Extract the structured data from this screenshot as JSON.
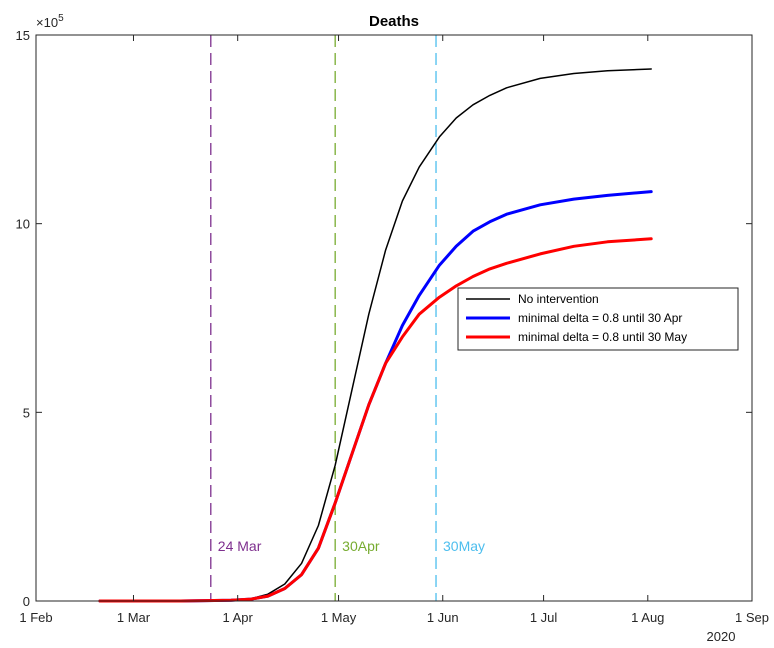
{
  "chart_data": {
    "type": "line",
    "title": "Deaths",
    "xlabel": "",
    "ylabel": "",
    "y_exponent_label": "×10",
    "y_exponent_power": "5",
    "x_year_label": "2020",
    "x_tick_labels": [
      "1 Feb",
      "1 Mar",
      "1 Apr",
      "1 May",
      "1 Jun",
      "1 Jul",
      "1 Aug",
      "1 Sep"
    ],
    "x_tick_dates": [
      "2020-02-01",
      "2020-03-01",
      "2020-04-01",
      "2020-05-01",
      "2020-06-01",
      "2020-07-01",
      "2020-08-01",
      "2020-09-01"
    ],
    "xlim": [
      "2020-02-01",
      "2020-09-01"
    ],
    "y_ticks": [
      0,
      5,
      10,
      15
    ],
    "ylim": [
      0,
      15
    ],
    "y_scale_factor": 100000,
    "grid": false,
    "legend_position": "right",
    "series": [
      {
        "name": "No intervention",
        "color": "#000000",
        "x": [
          "2020-02-20",
          "2020-03-15",
          "2020-03-30",
          "2020-04-05",
          "2020-04-10",
          "2020-04-15",
          "2020-04-20",
          "2020-04-25",
          "2020-04-30",
          "2020-05-05",
          "2020-05-10",
          "2020-05-15",
          "2020-05-20",
          "2020-05-25",
          "2020-05-31",
          "2020-06-05",
          "2020-06-10",
          "2020-06-15",
          "2020-06-20",
          "2020-06-30",
          "2020-07-10",
          "2020-07-20",
          "2020-08-02"
        ],
        "values": [
          0,
          0,
          0.02,
          0.06,
          0.18,
          0.45,
          1.0,
          2.0,
          3.6,
          5.6,
          7.6,
          9.3,
          10.6,
          11.5,
          12.3,
          12.8,
          13.15,
          13.4,
          13.6,
          13.85,
          13.98,
          14.05,
          14.1
        ]
      },
      {
        "name": "minimal delta = 0.8 until 30 Apr",
        "color": "#0000ff",
        "x": [
          "2020-02-20",
          "2020-03-15",
          "2020-03-30",
          "2020-04-05",
          "2020-04-10",
          "2020-04-15",
          "2020-04-20",
          "2020-04-25",
          "2020-04-30",
          "2020-05-05",
          "2020-05-10",
          "2020-05-15",
          "2020-05-20",
          "2020-05-25",
          "2020-05-31",
          "2020-06-05",
          "2020-06-10",
          "2020-06-15",
          "2020-06-20",
          "2020-06-30",
          "2020-07-10",
          "2020-07-20",
          "2020-08-02"
        ],
        "values": [
          0,
          0,
          0.02,
          0.05,
          0.13,
          0.33,
          0.7,
          1.4,
          2.6,
          3.9,
          5.2,
          6.3,
          7.3,
          8.1,
          8.9,
          9.4,
          9.8,
          10.05,
          10.25,
          10.5,
          10.65,
          10.75,
          10.85
        ]
      },
      {
        "name": "minimal delta = 0.8 until 30 May",
        "color": "#ff0000",
        "x": [
          "2020-02-20",
          "2020-03-15",
          "2020-03-30",
          "2020-04-05",
          "2020-04-10",
          "2020-04-15",
          "2020-04-20",
          "2020-04-25",
          "2020-04-30",
          "2020-05-05",
          "2020-05-10",
          "2020-05-15",
          "2020-05-20",
          "2020-05-25",
          "2020-05-31",
          "2020-06-05",
          "2020-06-10",
          "2020-06-15",
          "2020-06-20",
          "2020-06-30",
          "2020-07-10",
          "2020-07-20",
          "2020-08-02"
        ],
        "values": [
          0,
          0,
          0.02,
          0.05,
          0.13,
          0.33,
          0.7,
          1.4,
          2.6,
          3.9,
          5.2,
          6.3,
          7.0,
          7.6,
          8.05,
          8.35,
          8.6,
          8.8,
          8.95,
          9.2,
          9.4,
          9.52,
          9.6
        ]
      }
    ],
    "vertical_lines": [
      {
        "date": "2020-03-24",
        "label": "24 Mar",
        "color": "#7e2f8e"
      },
      {
        "date": "2020-04-30",
        "label": "30Apr",
        "color": "#77ac30"
      },
      {
        "date": "2020-05-30",
        "label": "30May",
        "color": "#4dbeee"
      }
    ]
  }
}
